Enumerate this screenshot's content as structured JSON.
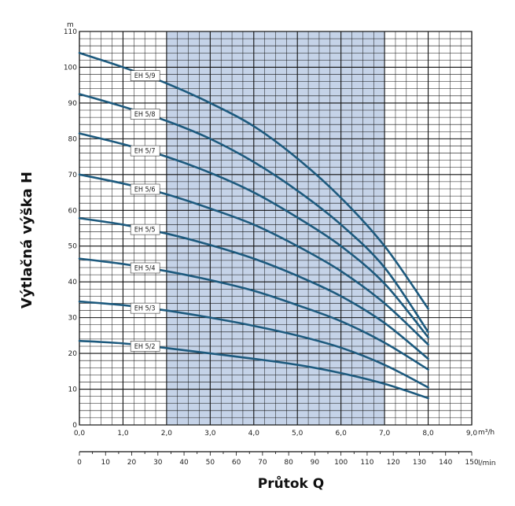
{
  "chart_data": {
    "type": "line",
    "xlabel": "Průtok Q",
    "ylabel": "Výtlačná výška H",
    "y_unit": "m",
    "x_unit": "m³/h",
    "x2_unit": "l/min",
    "xlim": [
      0,
      9
    ],
    "ylim": [
      0,
      110
    ],
    "x_ticks": [
      "0,0",
      "1,0",
      "2,0",
      "3,0",
      "4,0",
      "5,0",
      "6,0",
      "7,0",
      "8,0",
      "9,0"
    ],
    "y_ticks": [
      "0",
      "10",
      "20",
      "30",
      "40",
      "50",
      "60",
      "70",
      "80",
      "90",
      "100",
      "110"
    ],
    "x2_ticks": [
      "0",
      "10",
      "20",
      "30",
      "40",
      "50",
      "60",
      "70",
      "80",
      "90",
      "100",
      "110",
      "120",
      "130",
      "140",
      "150"
    ],
    "x2_lim": [
      0,
      150
    ],
    "highlight_range": [
      2,
      7
    ],
    "grid": true,
    "colors": {
      "line": "#1d5a7e",
      "highlight": "#c5d3e8",
      "grid": "#111111"
    },
    "series": [
      {
        "name": "EH 5/2",
        "x": [
          0,
          1,
          2,
          3,
          4,
          5,
          6,
          7,
          8
        ],
        "y": [
          23.5,
          22.8,
          21.5,
          20.0,
          18.5,
          16.8,
          14.5,
          11.5,
          7.5
        ]
      },
      {
        "name": "EH 5/3",
        "x": [
          0,
          1,
          2,
          3,
          4,
          5,
          6,
          7,
          8
        ],
        "y": [
          34.5,
          33.5,
          32.0,
          30.0,
          27.7,
          25.0,
          21.6,
          16.8,
          10.5
        ]
      },
      {
        "name": "EH 5/4",
        "x": [
          0,
          1,
          2,
          3,
          4,
          5,
          6,
          7,
          8
        ],
        "y": [
          46.5,
          45.0,
          43.0,
          40.5,
          37.5,
          33.5,
          29.0,
          23.0,
          15.5
        ]
      },
      {
        "name": "EH 5/5",
        "x": [
          0,
          1,
          2,
          3,
          4,
          5,
          6,
          7,
          8
        ],
        "y": [
          57.8,
          56.0,
          53.5,
          50.3,
          46.5,
          41.7,
          36.0,
          28.5,
          18.5
        ]
      },
      {
        "name": "EH 5/6",
        "x": [
          0,
          1,
          2,
          3,
          4,
          5,
          6,
          7,
          8
        ],
        "y": [
          70.0,
          67.5,
          64.5,
          60.5,
          56.0,
          50.0,
          43.0,
          34.0,
          22.5
        ]
      },
      {
        "name": "EH 5/7",
        "x": [
          0,
          1,
          2,
          3,
          4,
          5,
          6,
          7,
          8
        ],
        "y": [
          81.5,
          78.5,
          75.0,
          70.5,
          65.0,
          58.0,
          50.0,
          39.5,
          24.5
        ]
      },
      {
        "name": "EH 5/8",
        "x": [
          0,
          1,
          2,
          3,
          4,
          5,
          6,
          7,
          8
        ],
        "y": [
          92.5,
          89.0,
          85.0,
          80.0,
          73.5,
          65.5,
          56.0,
          44.0,
          26.0
        ]
      },
      {
        "name": "EH 5/9",
        "x": [
          0,
          1,
          2,
          3,
          4,
          5,
          6,
          7,
          8
        ],
        "y": [
          104.0,
          100.0,
          95.5,
          90.0,
          83.5,
          74.5,
          63.5,
          50.0,
          32.5
        ]
      }
    ]
  }
}
